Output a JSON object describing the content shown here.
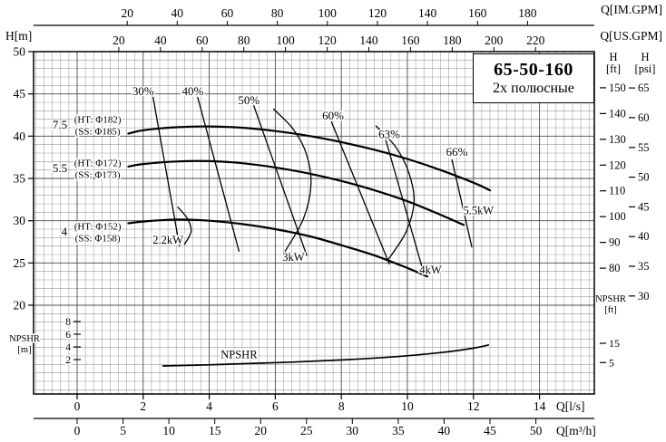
{
  "title_box": {
    "model": "65-50-160",
    "poles": "2х  полюсные"
  },
  "axes": {
    "im_gpm": {
      "label": "Q[IM.GPM]",
      "ticks": [
        20,
        40,
        60,
        80,
        100,
        120,
        140,
        160,
        180
      ]
    },
    "us_gpm": {
      "label": "Q[US.GPM]",
      "ticks": [
        20,
        40,
        60,
        80,
        100,
        120,
        140,
        160,
        180,
        200,
        220
      ]
    },
    "h_m": {
      "label": "H[m]",
      "ticks": [
        50,
        45,
        40,
        35,
        30,
        25,
        20
      ]
    },
    "h_ft": {
      "label_1": "H",
      "label_2": "[ft]",
      "ticks": [
        150,
        140,
        130,
        120,
        110,
        100,
        90,
        80
      ]
    },
    "h_psi": {
      "label_1": "H",
      "label_2": "[psi]",
      "ticks": [
        65,
        60,
        55,
        50,
        45,
        40,
        35,
        30
      ]
    },
    "npshr_m": {
      "label_1": "NPSHR",
      "label_2": "[m]",
      "ticks": [
        8,
        6,
        4,
        2
      ]
    },
    "npshr_ft": {
      "label_1": "NPSHR",
      "label_2": "[ft]",
      "ticks": [
        15,
        5
      ]
    },
    "q_ls": {
      "label": "Q[l/s]",
      "ticks": [
        0,
        2,
        4,
        6,
        8,
        10,
        12,
        14
      ]
    },
    "q_m3h": {
      "label": "Q[m³/h]",
      "ticks": [
        0,
        5,
        10,
        15,
        20,
        25,
        30,
        35,
        40,
        45,
        50
      ]
    }
  },
  "chart_data": {
    "type": "line",
    "title": "65-50-160  2х полюсные — pump performance curves",
    "x_unit": "l/s",
    "y_unit": "m",
    "x_range_ls": [
      0,
      15.5
    ],
    "h_range_m": [
      17,
      50
    ],
    "npshr_range_m": [
      0,
      9
    ],
    "grid": true,
    "head_curves": [
      {
        "name": "impeller-7.5kW",
        "power_label": "7.5",
        "ht_label": "(HT: Φ182)",
        "ss_label": "(SS: Φ185)",
        "label_h": [
          42.0,
          40.6
        ],
        "points": [
          [
            1.55,
            40.3
          ],
          [
            2,
            40.7
          ],
          [
            3,
            41.05
          ],
          [
            4,
            41.15
          ],
          [
            5,
            41.0
          ],
          [
            6,
            40.6
          ],
          [
            7,
            40.05
          ],
          [
            8,
            39.3
          ],
          [
            9,
            38.4
          ],
          [
            10,
            37.3
          ],
          [
            11,
            36.0
          ],
          [
            12,
            34.5
          ],
          [
            12.5,
            33.6
          ]
        ]
      },
      {
        "name": "impeller-5.5kW",
        "power_label": "5.5",
        "ht_label": "(HT: Φ172)",
        "ss_label": "(SS: Φ173)",
        "label_h": [
          36.9,
          35.5
        ],
        "points": [
          [
            1.55,
            36.4
          ],
          [
            2,
            36.7
          ],
          [
            3,
            37.0
          ],
          [
            4,
            37.05
          ],
          [
            5,
            36.8
          ],
          [
            6,
            36.3
          ],
          [
            7,
            35.6
          ],
          [
            8,
            34.7
          ],
          [
            9,
            33.6
          ],
          [
            10,
            32.3
          ],
          [
            11,
            30.7
          ],
          [
            11.7,
            29.5
          ]
        ]
      },
      {
        "name": "impeller-4kW",
        "power_label": "4",
        "ht_label": "(HT: Φ152)",
        "ss_label": "(SS: Φ158)",
        "label_h": [
          29.4,
          28.0
        ],
        "points": [
          [
            1.55,
            29.7
          ],
          [
            2,
            29.9
          ],
          [
            3,
            30.15
          ],
          [
            4,
            30.0
          ],
          [
            5,
            29.6
          ],
          [
            6,
            29.0
          ],
          [
            7,
            28.2
          ],
          [
            8,
            27.1
          ],
          [
            9,
            25.9
          ],
          [
            10,
            24.4
          ],
          [
            10.6,
            23.4
          ]
        ]
      }
    ],
    "efficiency_lines": [
      {
        "label": "30%",
        "label_at": [
          2.0,
          45.3
        ],
        "points": [
          [
            2.3,
            44.6
          ],
          [
            3.1,
            27.0
          ]
        ]
      },
      {
        "label": "40%",
        "label_at": [
          3.5,
          45.3
        ],
        "points": [
          [
            3.65,
            44.6
          ],
          [
            4.9,
            26.4
          ]
        ]
      },
      {
        "label": "50%",
        "label_at": [
          5.2,
          44.2
        ],
        "points": [
          [
            5.35,
            43.6
          ],
          [
            6.95,
            25.9
          ]
        ]
      },
      {
        "label": "60%",
        "label_at": [
          7.75,
          42.4
        ],
        "points": [
          [
            7.7,
            41.7
          ],
          [
            9.45,
            24.9
          ]
        ]
      },
      {
        "label": "63%",
        "label_at": [
          9.45,
          40.2
        ],
        "points": [
          [
            9.35,
            39.5
          ],
          [
            10.45,
            24.4
          ]
        ]
      },
      {
        "label": "66%",
        "label_at": [
          11.5,
          38.1
        ],
        "points": [
          [
            11.35,
            37.2
          ],
          [
            11.95,
            26.9
          ]
        ]
      }
    ],
    "efficiency_arcs": [
      {
        "points": [
          [
            3.05,
            31.6
          ],
          [
            3.35,
            30.2
          ],
          [
            3.45,
            28.7
          ],
          [
            3.25,
            27.2
          ]
        ]
      },
      {
        "points": [
          [
            5.95,
            43.2
          ],
          [
            6.55,
            40.8
          ],
          [
            6.95,
            37.8
          ],
          [
            7.08,
            34.2
          ],
          [
            6.85,
            30.2
          ],
          [
            6.3,
            26.4
          ]
        ]
      },
      {
        "points": [
          [
            9.05,
            41.2
          ],
          [
            9.65,
            38.7
          ],
          [
            10.05,
            35.6
          ],
          [
            10.2,
            32.2
          ],
          [
            9.95,
            28.6
          ],
          [
            9.4,
            25.3
          ]
        ]
      }
    ],
    "power_labels": [
      {
        "label": "2.2kW",
        "at": [
          2.75,
          27.7
        ]
      },
      {
        "label": "3kW",
        "at": [
          6.55,
          25.7
        ]
      },
      {
        "label": "4kW",
        "at": [
          10.7,
          24.2
        ]
      },
      {
        "label": "5.5kW",
        "at": [
          12.15,
          31.2
        ]
      }
    ],
    "npshr_curve": {
      "label": "NPSHR",
      "label_at": [
        4.9,
        2.8
      ],
      "points": [
        [
          2.6,
          1.0
        ],
        [
          3.5,
          1.1
        ],
        [
          5,
          1.35
        ],
        [
          6.5,
          1.6
        ],
        [
          8,
          1.95
        ],
        [
          9.5,
          2.4
        ],
        [
          11,
          3.1
        ],
        [
          12,
          3.8
        ],
        [
          12.45,
          4.3
        ]
      ]
    }
  }
}
